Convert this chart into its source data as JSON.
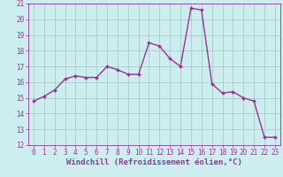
{
  "x": [
    0,
    1,
    2,
    3,
    4,
    5,
    6,
    7,
    8,
    9,
    10,
    11,
    12,
    13,
    14,
    15,
    16,
    17,
    18,
    19,
    20,
    21,
    22,
    23
  ],
  "y": [
    14.8,
    15.1,
    15.5,
    16.2,
    16.4,
    16.3,
    16.3,
    17.0,
    16.8,
    16.5,
    16.5,
    18.5,
    18.3,
    17.5,
    17.0,
    20.7,
    20.6,
    15.9,
    15.3,
    15.4,
    15.0,
    14.8,
    12.5,
    12.5
  ],
  "line_color": "#993399",
  "marker": "D",
  "marker_size": 2.0,
  "background_color": "#cceeee",
  "grid_color": "#aacccc",
  "xlabel": "Windchill (Refroidissement éolien,°C)",
  "ylim": [
    12,
    21
  ],
  "xlim_left": -0.5,
  "xlim_right": 23.5,
  "yticks": [
    12,
    13,
    14,
    15,
    16,
    17,
    18,
    19,
    20,
    21
  ],
  "xticks": [
    0,
    1,
    2,
    3,
    4,
    5,
    6,
    7,
    8,
    9,
    10,
    11,
    12,
    13,
    14,
    15,
    16,
    17,
    18,
    19,
    20,
    21,
    22,
    23
  ],
  "tick_color": "#993399",
  "tick_label_fontsize": 5.5,
  "xlabel_fontsize": 6.5,
  "line_width": 1.0
}
